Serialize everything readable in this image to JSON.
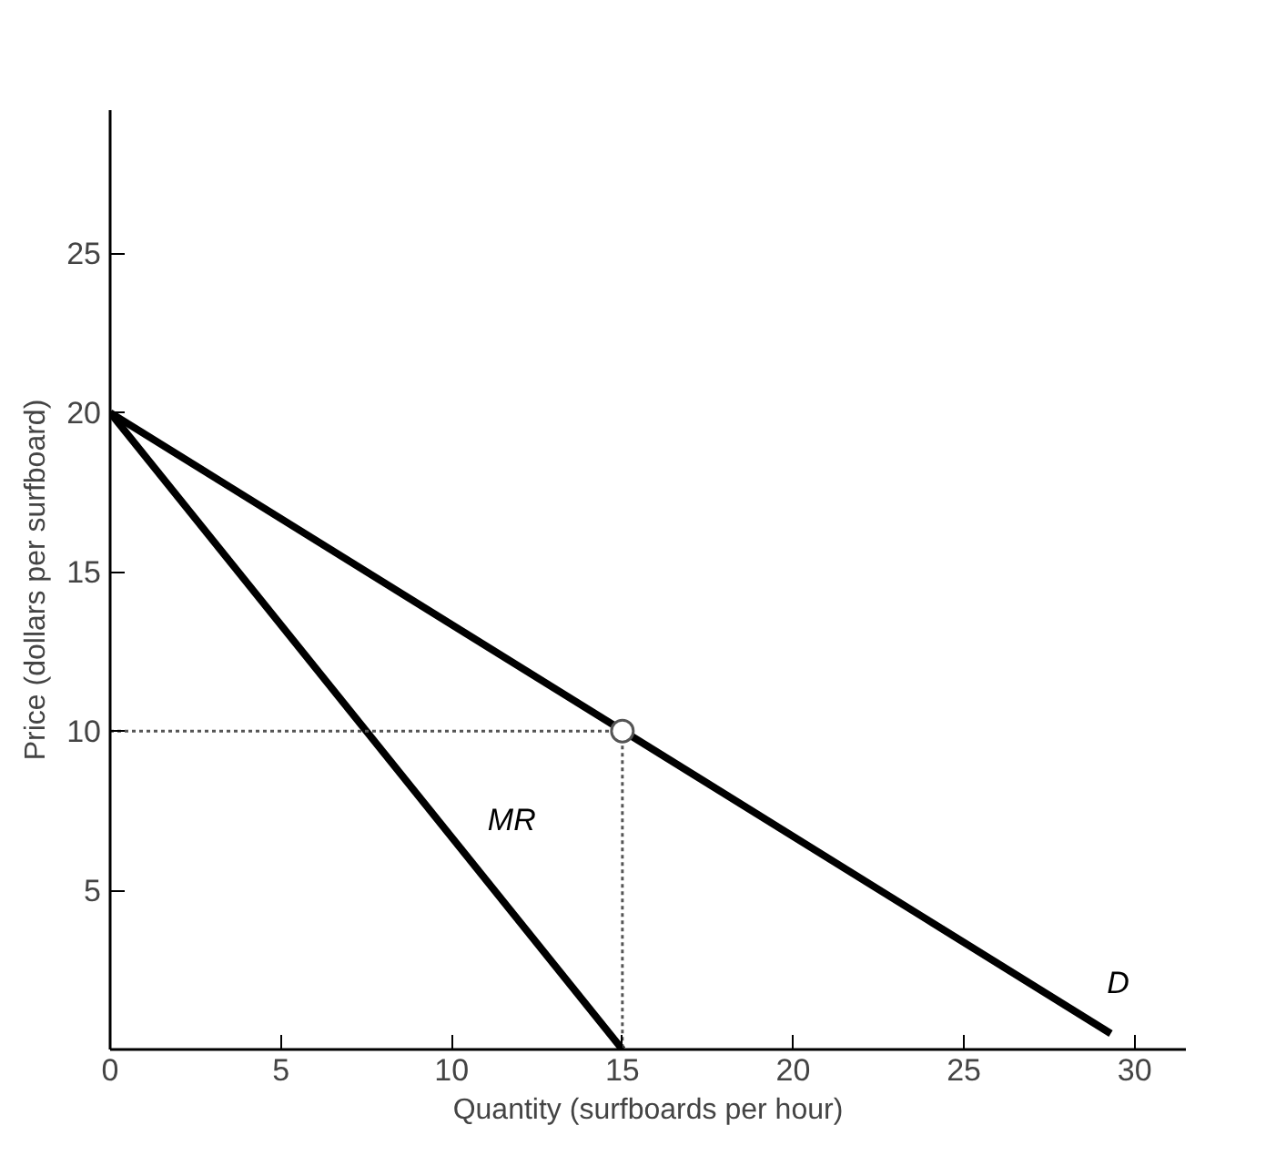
{
  "chart_data": {
    "type": "line",
    "xlabel": "Quantity (surfboards per hour)",
    "ylabel": "Price (dollars per surfboard)",
    "xlim": [
      0,
      31.5
    ],
    "ylim": [
      0,
      29.5
    ],
    "xticks": [
      0,
      5,
      10,
      15,
      20,
      25,
      30
    ],
    "yticks": [
      5,
      10,
      15,
      20,
      25
    ],
    "grid": false,
    "series": [
      {
        "name": "D",
        "color": "#000000",
        "x": [
          0,
          29.3
        ],
        "values": [
          20,
          0.5
        ],
        "line_style": "solid"
      },
      {
        "name": "MR",
        "color": "#000000",
        "x": [
          0,
          15
        ],
        "values": [
          20,
          0
        ],
        "line_style": "solid"
      },
      {
        "color": "#555555",
        "x": [
          0,
          15
        ],
        "values": [
          10,
          10
        ],
        "line_style": "dotted"
      },
      {
        "color": "#555555",
        "x": [
          15,
          15
        ],
        "values": [
          10,
          0
        ],
        "line_style": "dotted"
      },
      {
        "type": "scatter",
        "color": "#555555",
        "x": [
          15
        ],
        "values": [
          10
        ],
        "marker": "circle"
      }
    ]
  }
}
